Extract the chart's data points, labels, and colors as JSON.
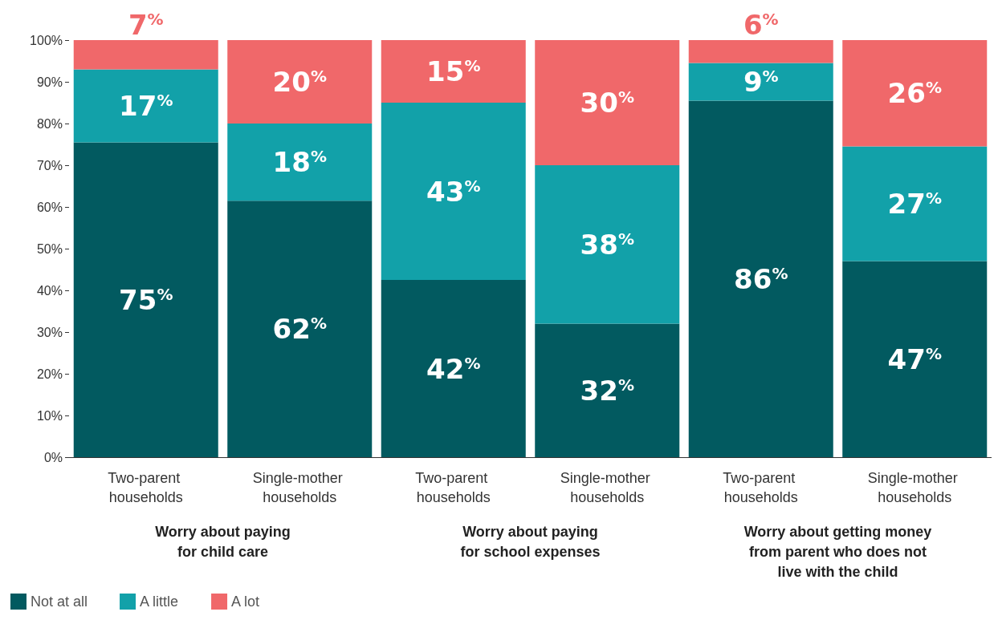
{
  "chart_data": {
    "type": "bar",
    "stacked": true,
    "categories": [
      "Two-parent households",
      "Single-mother households",
      "Two-parent households",
      "Single-mother households",
      "Two-parent households",
      "Single-mother households"
    ],
    "series": [
      {
        "name": "Not at all",
        "color": "#025a60",
        "values": [
          75.5,
          61.5,
          42.5,
          32,
          85.5,
          47
        ],
        "value_labels": [
          "75%",
          "62%",
          "42%",
          "32%",
          "86%",
          "47%"
        ]
      },
      {
        "name": "A little",
        "color": "#12a1a9",
        "values": [
          17.5,
          18.5,
          42.5,
          38,
          9,
          27.5
        ],
        "value_labels": [
          "17%",
          "18%",
          "43%",
          "38%",
          "9%",
          "27%"
        ]
      },
      {
        "name": "A lot",
        "color": "#f0686a",
        "values": [
          7,
          20,
          15,
          30,
          5.5,
          25.5
        ],
        "value_labels": [
          "7%",
          "20%",
          "15%",
          "30%",
          "6%",
          "26%"
        ]
      }
    ],
    "ylim": [
      0,
      100
    ],
    "yticks": [
      {
        "value": 0,
        "label": "0%"
      },
      {
        "value": 10,
        "label": "10%"
      },
      {
        "value": 20,
        "label": "20%"
      },
      {
        "value": 30,
        "label": "30%"
      },
      {
        "value": 40,
        "label": "40%"
      },
      {
        "value": 50,
        "label": "50%"
      },
      {
        "value": 60,
        "label": "60%"
      },
      {
        "value": 70,
        "label": "70%"
      },
      {
        "value": 80,
        "label": "80%"
      },
      {
        "value": 90,
        "label": "90%"
      },
      {
        "value": 100,
        "label": "100%"
      }
    ],
    "grid": false,
    "legend": "bottom left",
    "annotations": [
      "Worry about paying\nfor child care",
      "Worry about paying\nfor school expenses",
      "Worry about getting money\nfrom parent who does not\nlive with the child"
    ]
  }
}
